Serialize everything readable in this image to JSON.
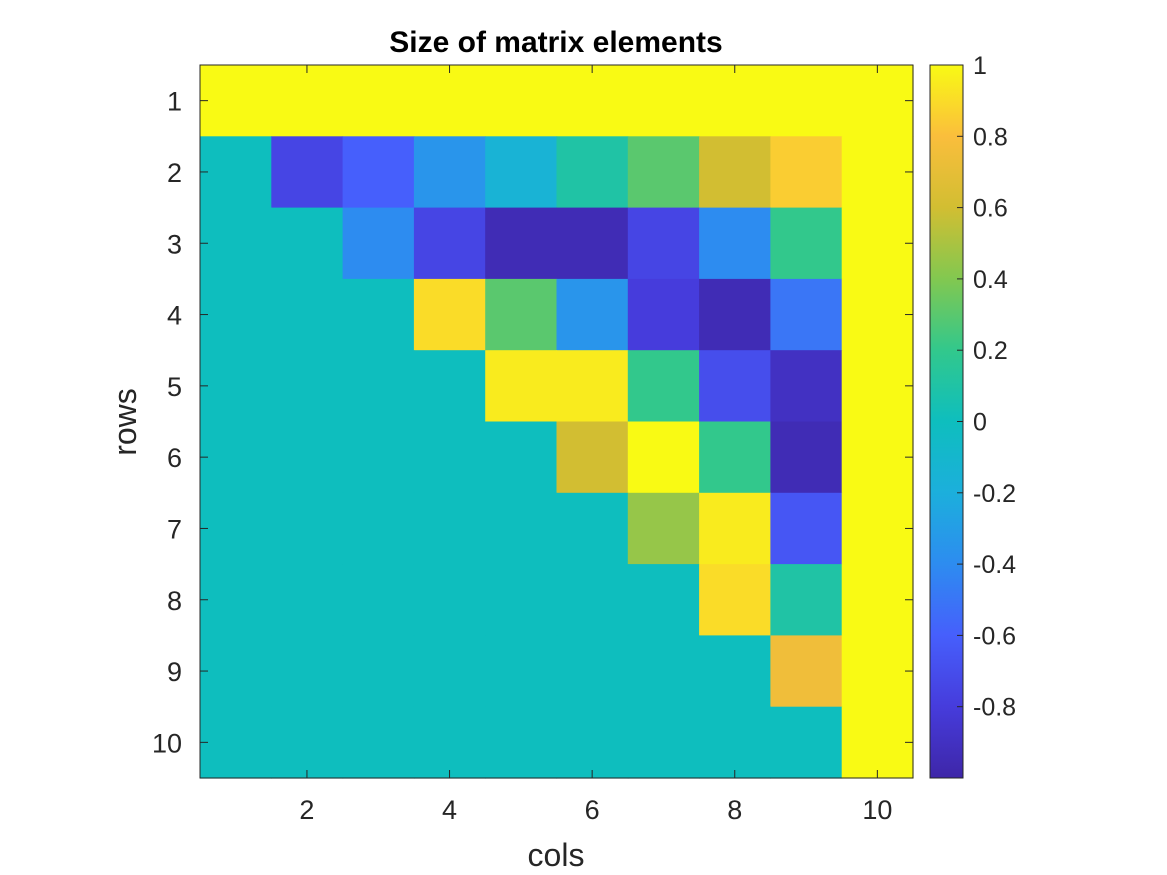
{
  "chart_data": {
    "type": "heatmap",
    "title": "Size of matrix elements",
    "xlabel": "cols",
    "ylabel": "rows",
    "rows": [
      1,
      2,
      3,
      4,
      5,
      6,
      7,
      8,
      9,
      10
    ],
    "cols": [
      1,
      2,
      3,
      4,
      5,
      6,
      7,
      8,
      9,
      10
    ],
    "xticks": [
      2,
      4,
      6,
      8,
      10
    ],
    "yticks": [
      1,
      2,
      3,
      4,
      5,
      6,
      7,
      8,
      9,
      10
    ],
    "colorbar": {
      "colormap": "parula",
      "clim": [
        -1,
        1
      ],
      "ticks": [
        1,
        0.8,
        0.6,
        0.4,
        0.2,
        0,
        -0.2,
        -0.4,
        -0.6,
        -0.8
      ],
      "tick_labels": [
        "1",
        "0.8",
        "0.6",
        "0.4",
        "0.2",
        "0",
        "-0.2",
        "-0.4",
        "-0.6",
        "-0.8"
      ],
      "position": "right"
    },
    "values": [
      [
        1,
        1,
        1,
        1,
        1,
        1,
        1,
        1,
        1,
        1
      ],
      [
        0,
        -0.75,
        -0.6,
        -0.35,
        -0.15,
        0.1,
        0.3,
        0.6,
        0.85,
        1
      ],
      [
        0,
        0,
        -0.4,
        -0.75,
        -0.95,
        -0.95,
        -0.75,
        -0.4,
        0.2,
        1
      ],
      [
        0,
        0,
        0,
        0.9,
        0.3,
        -0.35,
        -0.8,
        -0.95,
        -0.5,
        1
      ],
      [
        0,
        0,
        0,
        0,
        0.95,
        0.95,
        0.2,
        -0.7,
        -0.9,
        1
      ],
      [
        0,
        0,
        0,
        0,
        0,
        0.6,
        1,
        0.2,
        -0.95,
        1
      ],
      [
        0,
        0,
        0,
        0,
        0,
        0,
        0.45,
        0.95,
        -0.65,
        1
      ],
      [
        0,
        0,
        0,
        0,
        0,
        0,
        0,
        0.9,
        0.1,
        1
      ],
      [
        0,
        0,
        0,
        0,
        0,
        0,
        0,
        0,
        0.75,
        1
      ],
      [
        0,
        0,
        0,
        0,
        0,
        0,
        0,
        0,
        0,
        1
      ]
    ]
  }
}
